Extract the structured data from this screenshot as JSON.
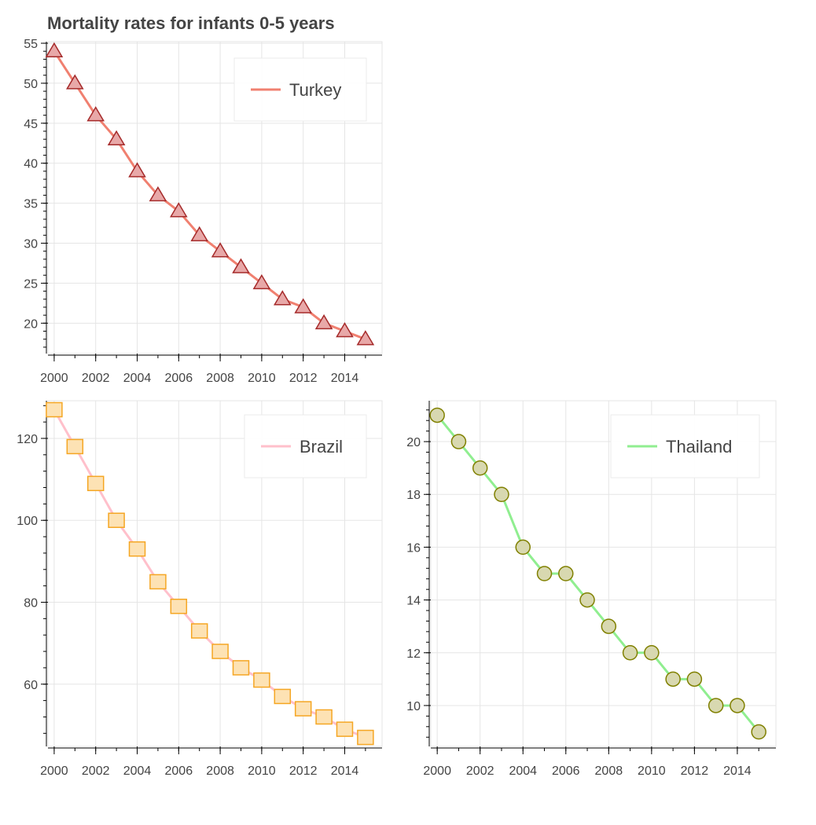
{
  "title": "Mortality rates for infants 0-5 years",
  "chart_data": [
    {
      "type": "line",
      "marker": "triangle",
      "x": [
        2000,
        2001,
        2002,
        2003,
        2004,
        2005,
        2006,
        2007,
        2008,
        2009,
        2010,
        2011,
        2012,
        2013,
        2014,
        2015
      ],
      "series": [
        {
          "name": "Turkey",
          "values": [
            54,
            50,
            46,
            43,
            39,
            36,
            34,
            31,
            29,
            27,
            25,
            23,
            22,
            20,
            19,
            18
          ]
        }
      ],
      "xticks": [
        2000,
        2002,
        2004,
        2006,
        2008,
        2010,
        2012,
        2014
      ],
      "xtick_labels": [
        "2000",
        "2002",
        "2004",
        "2006",
        "2008",
        "2010",
        "2012",
        "2014"
      ],
      "yticks": [
        20,
        25,
        30,
        35,
        40,
        45,
        50,
        55
      ],
      "ytick_labels": [
        "20",
        "25",
        "30",
        "35",
        "40",
        "45",
        "50",
        "55"
      ],
      "xlim": [
        1999.7,
        2015.8
      ],
      "ylim": [
        16.2,
        55.2
      ],
      "xlabel": "",
      "ylabel": "",
      "grid": true,
      "legend_position": "top-right",
      "colors": {
        "line": "#f08070",
        "marker_fill": "#e8a8a8",
        "marker_edge": "#a52a2a"
      }
    },
    {
      "type": "line",
      "marker": "square",
      "x": [
        2000,
        2001,
        2002,
        2003,
        2004,
        2005,
        2006,
        2007,
        2008,
        2009,
        2010,
        2011,
        2012,
        2013,
        2014,
        2015
      ],
      "series": [
        {
          "name": "Brazil",
          "values": [
            127,
            118,
            109,
            100,
            93,
            85,
            79,
            73,
            68,
            64,
            61,
            57,
            54,
            52,
            49,
            47
          ]
        }
      ],
      "xticks": [
        2000,
        2002,
        2004,
        2006,
        2008,
        2010,
        2012,
        2014
      ],
      "xtick_labels": [
        "2000",
        "2002",
        "2004",
        "2006",
        "2008",
        "2010",
        "2012",
        "2014"
      ],
      "yticks": [
        60,
        80,
        100,
        120
      ],
      "ytick_labels": [
        "60",
        "80",
        "100",
        "120"
      ],
      "xlim": [
        1999.7,
        2015.8
      ],
      "ylim": [
        44.8,
        129.2
      ],
      "xlabel": "",
      "ylabel": "",
      "grid": true,
      "legend_position": "top-right",
      "colors": {
        "line": "#ffc0cb",
        "marker_fill": "#fde2b4",
        "marker_edge": "#f5a623"
      }
    },
    {
      "type": "line",
      "marker": "circle",
      "x": [
        2000,
        2001,
        2002,
        2003,
        2004,
        2005,
        2006,
        2007,
        2008,
        2009,
        2010,
        2011,
        2012,
        2013,
        2014,
        2015
      ],
      "series": [
        {
          "name": "Thailand",
          "values": [
            21,
            20,
            19,
            18,
            16,
            15,
            15,
            14,
            13,
            12,
            12,
            11,
            11,
            10,
            10,
            9
          ]
        }
      ],
      "xticks": [
        2000,
        2002,
        2004,
        2006,
        2008,
        2010,
        2012,
        2014
      ],
      "xtick_labels": [
        "2000",
        "2002",
        "2004",
        "2006",
        "2008",
        "2010",
        "2012",
        "2014"
      ],
      "yticks": [
        10,
        12,
        14,
        16,
        18,
        20
      ],
      "ytick_labels": [
        "10",
        "12",
        "14",
        "16",
        "18",
        "20"
      ],
      "xlim": [
        1999.7,
        2015.8
      ],
      "ylim": [
        8.45,
        21.55
      ],
      "xlabel": "",
      "ylabel": "",
      "grid": true,
      "legend_position": "top-right",
      "colors": {
        "line": "#90ee90",
        "marker_fill": "#d8d8b0",
        "marker_edge": "#808000"
      }
    }
  ]
}
